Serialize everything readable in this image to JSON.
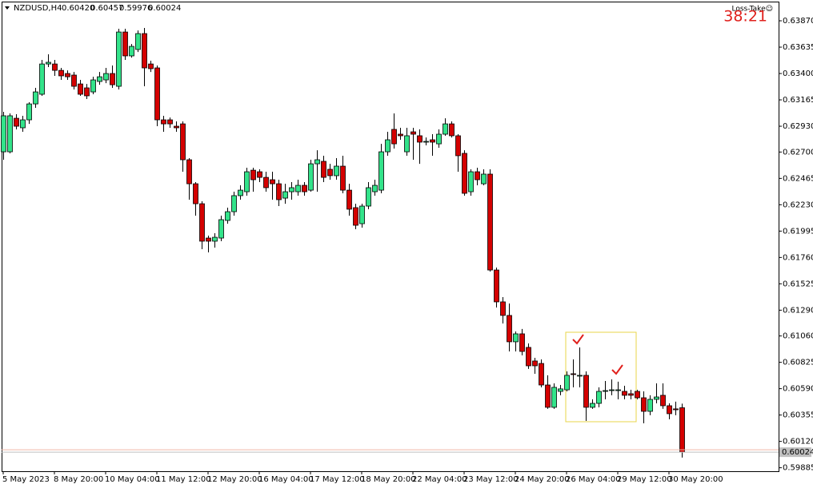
{
  "chart_data": {
    "type": "candlestick",
    "header": {
      "symbol": "NZDUSD,H4",
      "ohlc_labels": [
        "0.60420",
        "0.60457",
        "0.59976",
        "0.60024"
      ]
    },
    "annotations": {
      "indicator": "Loss-Take☺",
      "timer": "38:21"
    },
    "categories": [
      "5 May 2023",
      null,
      null,
      null,
      null,
      null,
      null,
      null,
      "8 May 20:00",
      null,
      null,
      null,
      null,
      null,
      null,
      null,
      "10 May 04:00",
      null,
      null,
      null,
      null,
      null,
      null,
      null,
      "11 May 12:00",
      null,
      null,
      null,
      null,
      null,
      null,
      null,
      "12 May 20:00",
      null,
      null,
      null,
      null,
      null,
      null,
      null,
      "16 May 04:00",
      null,
      null,
      null,
      null,
      null,
      null,
      null,
      "17 May 12:00",
      null,
      null,
      null,
      null,
      null,
      null,
      null,
      "18 May 20:00",
      null,
      null,
      null,
      null,
      null,
      null,
      null,
      "22 May 04:00",
      null,
      null,
      null,
      null,
      null,
      null,
      null,
      "23 May 12:00",
      null,
      null,
      null,
      null,
      null,
      null,
      null,
      "24 May 20:00",
      null,
      null,
      null,
      null,
      null,
      null,
      null,
      "26 May 04:00",
      null,
      null,
      null,
      null,
      null,
      null,
      null,
      "29 May 12:00",
      null,
      null,
      null,
      null,
      null,
      null,
      null,
      "30 May 20:00",
      null,
      null
    ],
    "open": [
      0.62702,
      0.62702,
      0.63001,
      0.62916,
      0.62987,
      0.63129,
      0.63215,
      0.63485,
      0.63485,
      0.63428,
      0.634,
      0.63386,
      0.63307,
      0.63272,
      0.63236,
      0.63329,
      0.63343,
      0.634,
      0.63286,
      0.6377,
      0.63557,
      0.63614,
      0.63756,
      0.63485,
      0.6345,
      0.62987,
      0.62987,
      0.6293,
      0.62951,
      0.62631,
      0.62417,
      0.62239,
      0.61933,
      0.61905,
      0.61933,
      0.6209,
      0.62168,
      0.62311,
      0.62346,
      0.62538,
      0.62524,
      0.62474,
      0.62453,
      0.62417,
      0.62289,
      0.62346,
      0.62346,
      0.62403,
      0.6236,
      0.62595,
      0.62617,
      0.62546,
      0.62489,
      0.62574,
      0.6236,
      0.62204,
      0.62061,
      0.62218,
      0.62346,
      0.6236,
      0.62702,
      0.62902,
      0.62859,
      0.62702,
      0.6288,
      0.62845,
      0.62788,
      0.62809,
      0.62773,
      0.62859,
      0.62951,
      0.62845,
      0.62688,
      0.62346,
      0.62524,
      0.62417,
      0.62503,
      0.61648,
      0.61364,
      0.61243,
      0.61008,
      0.61079,
      0.60958,
      0.60837,
      0.60815,
      0.60623,
      0.60424,
      0.60566,
      0.6058,
      0.60723,
      0.60709,
      0.60709,
      0.60424,
      0.60459,
      0.60566,
      0.6058,
      0.6058,
      0.60566,
      0.60545,
      0.60566,
      0.60509,
      0.60388,
      0.60495,
      0.60531,
      0.60438,
      0.6041,
      0.6042
    ],
    "high": [
      0.63058,
      0.63044,
      0.63037,
      0.63023,
      0.63144,
      0.63272,
      0.63521,
      0.63571,
      0.63521,
      0.6345,
      0.63428,
      0.63414,
      0.63343,
      0.63307,
      0.63371,
      0.63414,
      0.6345,
      0.63471,
      0.63799,
      0.63799,
      0.63663,
      0.63784,
      0.63806,
      0.63514,
      0.63471,
      0.63023,
      0.63008,
      0.62973,
      0.62973,
      0.62645,
      0.62432,
      0.62261,
      0.61955,
      0.61976,
      0.62133,
      0.62204,
      0.62346,
      0.62403,
      0.6256,
      0.6256,
      0.62546,
      0.62524,
      0.62524,
      0.62453,
      0.62417,
      0.62432,
      0.62453,
      0.62432,
      0.62631,
      0.62716,
      0.62667,
      0.62595,
      0.62645,
      0.62667,
      0.62417,
      0.62239,
      0.62239,
      0.62432,
      0.62453,
      0.62773,
      0.6288,
      0.63044,
      0.62916,
      0.62916,
      0.62916,
      0.62902,
      0.6283,
      0.62859,
      0.62902,
      0.63001,
      0.62973,
      0.62859,
      0.62716,
      0.62546,
      0.6256,
      0.62546,
      0.62546,
      0.6167,
      0.61406,
      0.61349,
      0.611,
      0.61122,
      0.60993,
      0.60865,
      0.60851,
      0.60709,
      0.60637,
      0.60623,
      0.60744,
      0.60851,
      0.60958,
      0.60744,
      0.60495,
      0.60602,
      0.60659,
      0.60673,
      0.60652,
      0.60616,
      0.6058,
      0.6058,
      0.60566,
      0.60531,
      0.60637,
      0.60637,
      0.60459,
      0.60474,
      0.60457
    ],
    "low": [
      0.62631,
      0.62688,
      0.62902,
      0.6288,
      0.62951,
      0.63094,
      0.63201,
      0.63457,
      0.63379,
      0.63343,
      0.63343,
      0.63258,
      0.63201,
      0.63172,
      0.63215,
      0.633,
      0.63314,
      0.63272,
      0.63258,
      0.63521,
      0.63542,
      0.63592,
      0.63286,
      0.63414,
      0.6293,
      0.6288,
      0.62916,
      0.6288,
      0.62524,
      0.62275,
      0.62133,
      0.61834,
      0.61805,
      0.61848,
      0.61905,
      0.62061,
      0.62133,
      0.62275,
      0.62311,
      0.62346,
      0.62432,
      0.62346,
      0.62275,
      0.62218,
      0.62239,
      0.62275,
      0.62311,
      0.62311,
      0.62346,
      0.62346,
      0.62432,
      0.62453,
      0.62453,
      0.62332,
      0.62133,
      0.62012,
      0.62026,
      0.6219,
      0.62311,
      0.62332,
      0.62667,
      0.62731,
      0.62809,
      0.62667,
      0.62631,
      0.62595,
      0.62759,
      0.62667,
      0.62738,
      0.62845,
      0.6283,
      0.62524,
      0.62311,
      0.62311,
      0.62403,
      0.62403,
      0.61634,
      0.61314,
      0.61171,
      0.60922,
      0.60922,
      0.60887,
      0.60766,
      0.60723,
      0.60602,
      0.6041,
      0.6041,
      0.60531,
      0.60566,
      0.60602,
      0.60602,
      0.60303,
      0.6041,
      0.60424,
      0.60495,
      0.60531,
      0.60495,
      0.60495,
      0.60495,
      0.60495,
      0.60281,
      0.60353,
      0.60459,
      0.6041,
      0.60317,
      0.60353,
      0.59976
    ],
    "close": [
      0.63023,
      0.63023,
      0.6293,
      0.62987,
      0.63129,
      0.63236,
      0.63485,
      0.635,
      0.63428,
      0.63379,
      0.63371,
      0.63286,
      0.63215,
      0.63201,
      0.63343,
      0.63371,
      0.634,
      0.633,
      0.6377,
      0.63557,
      0.63642,
      0.63756,
      0.6345,
      0.63443,
      0.62987,
      0.62951,
      0.62951,
      0.62916,
      0.62631,
      0.62417,
      0.62239,
      0.61905,
      0.61905,
      0.6194,
      0.62097,
      0.62168,
      0.62311,
      0.6236,
      0.62524,
      0.62453,
      0.62474,
      0.62382,
      0.62417,
      0.62275,
      0.62346,
      0.62382,
      0.62403,
      0.62346,
      0.62595,
      0.62631,
      0.62474,
      0.62489,
      0.62574,
      0.6236,
      0.6219,
      0.62047,
      0.62218,
      0.62382,
      0.62403,
      0.62702,
      0.62809,
      0.62773,
      0.62845,
      0.62845,
      0.62859,
      0.62788,
      0.62795,
      0.62788,
      0.62859,
      0.62951,
      0.62845,
      0.62667,
      0.62332,
      0.62524,
      0.62453,
      0.62503,
      0.61648,
      0.61364,
      0.61243,
      0.61008,
      0.61079,
      0.60922,
      0.60794,
      0.60794,
      0.60623,
      0.60424,
      0.60602,
      0.60588,
      0.60709,
      0.60716,
      0.60709,
      0.60424,
      0.60459,
      0.60566,
      0.60573,
      0.6058,
      0.6058,
      0.60531,
      0.60531,
      0.60509,
      0.60388,
      0.60495,
      0.60516,
      0.60438,
      0.60367,
      0.60402,
      0.60024
    ],
    "up_color": "#33e38a",
    "down_color": "#d40000",
    "ylim": [
      0.59854,
      0.64034
    ],
    "yticks": [
      {
        "value": 0.6387,
        "label": "0.63870"
      },
      {
        "value": 0.63635,
        "label": "0.63635"
      },
      {
        "value": 0.634,
        "label": "0.63400"
      },
      {
        "value": 0.63165,
        "label": "0.63165"
      },
      {
        "value": 0.6293,
        "label": "0.62930"
      },
      {
        "value": 0.627,
        "label": "0.62700"
      },
      {
        "value": 0.62465,
        "label": "0.62465"
      },
      {
        "value": 0.6223,
        "label": "0.62230"
      },
      {
        "value": 0.61995,
        "label": "0.61995"
      },
      {
        "value": 0.6176,
        "label": "0.61760"
      },
      {
        "value": 0.61525,
        "label": "0.61525"
      },
      {
        "value": 0.6129,
        "label": "0.61290"
      },
      {
        "value": 0.6106,
        "label": "0.61060"
      },
      {
        "value": 0.60825,
        "label": "0.60825"
      },
      {
        "value": 0.6059,
        "label": "0.60590"
      },
      {
        "value": 0.60355,
        "label": "0.60355"
      },
      {
        "value": 0.6012,
        "label": "0.60120"
      },
      {
        "value": 0.59885,
        "label": "0.59885"
      }
    ],
    "current_price": {
      "value": 0.60024,
      "label": "0.60024"
    },
    "grid": false
  }
}
